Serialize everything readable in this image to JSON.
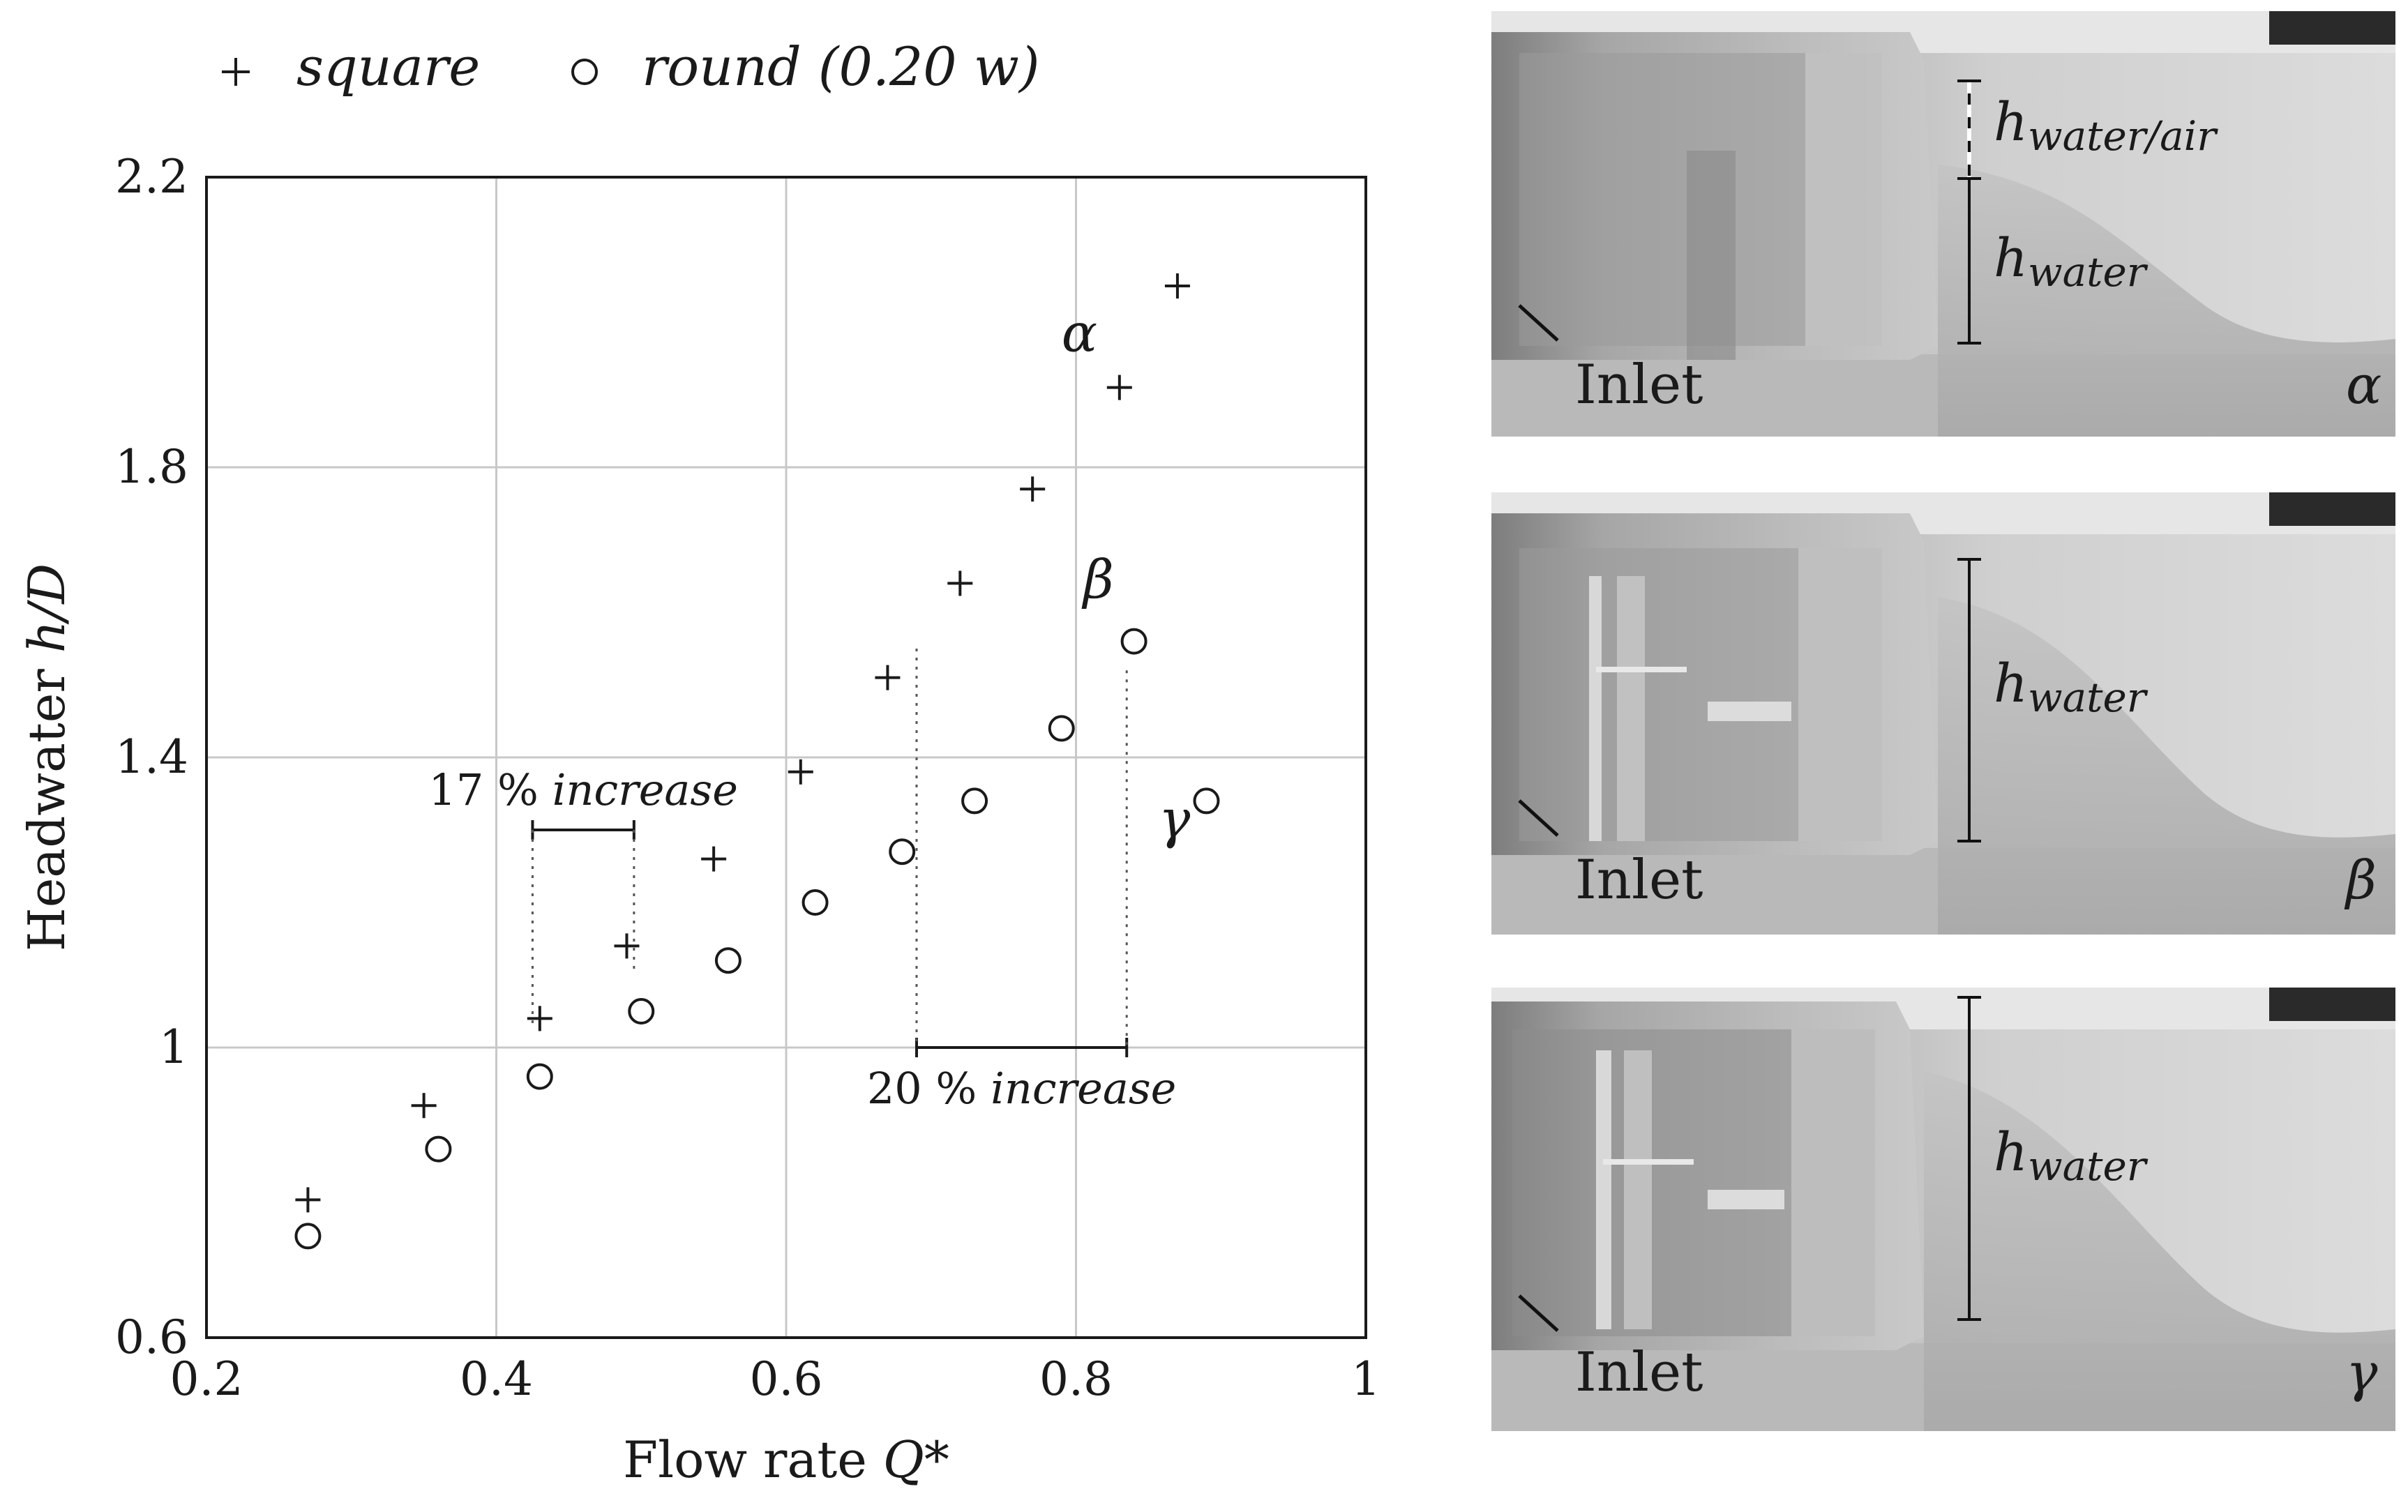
{
  "chart_data": {
    "type": "scatter",
    "legend": {
      "placement": "top-left"
    },
    "series": [
      {
        "name": "square",
        "marker": "plus",
        "points": [
          [
            0.27,
            0.79
          ],
          [
            0.35,
            0.92
          ],
          [
            0.43,
            1.04
          ],
          [
            0.49,
            1.14
          ],
          [
            0.55,
            1.26
          ],
          [
            0.61,
            1.38
          ],
          [
            0.67,
            1.51
          ],
          [
            0.72,
            1.64
          ],
          [
            0.77,
            1.77
          ],
          [
            0.83,
            1.91
          ],
          [
            0.87,
            2.05
          ]
        ]
      },
      {
        "name": "round (0.20 w)",
        "marker": "circle",
        "points": [
          [
            0.27,
            0.74
          ],
          [
            0.36,
            0.86
          ],
          [
            0.43,
            0.96
          ],
          [
            0.5,
            1.05
          ],
          [
            0.56,
            1.12
          ],
          [
            0.62,
            1.2
          ],
          [
            0.68,
            1.27
          ],
          [
            0.73,
            1.34
          ],
          [
            0.79,
            1.44
          ],
          [
            0.84,
            1.56
          ],
          [
            0.89,
            1.34
          ]
        ]
      }
    ],
    "xlabel": "Flow rate",
    "xlabel_var": "Q*",
    "ylabel": "Headwater",
    "ylabel_var": "h/D",
    "xlim": [
      0.2,
      1.0
    ],
    "ylim": [
      0.6,
      2.2
    ],
    "xticks": [
      0.2,
      0.4,
      0.6,
      0.8,
      1.0
    ],
    "xtick_labels": [
      "0.2",
      "0.4",
      "0.6",
      "0.8",
      "1"
    ],
    "yticks": [
      0.6,
      1.0,
      1.4,
      1.8,
      2.2
    ],
    "ytick_labels": [
      "0.6",
      "1",
      "1.4",
      "1.8",
      "2.2"
    ],
    "grid": true,
    "annotations": [
      {
        "number": "17",
        "unit": "%",
        "word": "increase",
        "x_from": 0.425,
        "x_to": 0.495,
        "y_bracket": 1.3
      },
      {
        "number": "20",
        "unit": "%",
        "word": "increase",
        "x_from": 0.69,
        "x_to": 0.835,
        "y_bracket": 1.0
      }
    ],
    "point_labels": [
      {
        "text": "α",
        "x": 0.79,
        "y": 1.96
      },
      {
        "text": "β",
        "x": 0.805,
        "y": 1.62
      },
      {
        "text": "γ",
        "x": 0.857,
        "y": 1.29
      }
    ]
  },
  "photos": [
    {
      "inlet": "Inlet",
      "greek": "α",
      "h1_main": "h",
      "h1_sub": "water/air",
      "h2_main": "h",
      "h2_sub": "water"
    },
    {
      "inlet": "Inlet",
      "greek": "β",
      "h_main": "h",
      "h_sub": "water"
    },
    {
      "inlet": "Inlet",
      "greek": "γ",
      "h_main": "h",
      "h_sub": "water"
    }
  ]
}
